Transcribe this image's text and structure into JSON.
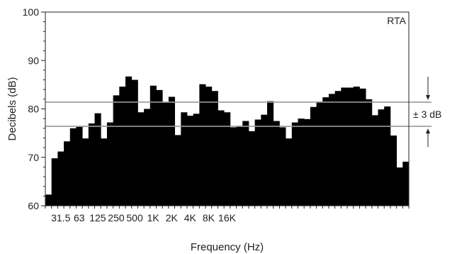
{
  "chart_data": {
    "type": "bar",
    "inset_label": "RTA",
    "xlabel": "Frequency (Hz)",
    "ylabel": "Decibels (dB)",
    "ylim": [
      60,
      100
    ],
    "yticks": [
      60,
      70,
      80,
      90,
      100
    ],
    "xtick_labels": [
      "31.5",
      "63",
      "125",
      "250",
      "500",
      "1K",
      "2K",
      "4K",
      "8K",
      "16K"
    ],
    "xtick_bands": [
      3,
      6,
      9,
      12,
      15,
      18,
      21,
      24,
      27,
      30
    ],
    "values": [
      62.3,
      69.8,
      71.2,
      73.3,
      76.0,
      76.3,
      73.9,
      77.0,
      79.1,
      73.9,
      77.2,
      82.8,
      84.6,
      86.7,
      86.0,
      79.3,
      80.0,
      84.8,
      83.9,
      81.3,
      82.5,
      74.6,
      79.3,
      78.6,
      79.0,
      85.1,
      84.6,
      83.7,
      79.7,
      79.3,
      76.2,
      76.5,
      77.5,
      75.4,
      77.8,
      78.8,
      81.6,
      77.5,
      76.2,
      73.9,
      77.2,
      78.0,
      77.9,
      80.4,
      81.5,
      82.4,
      83.1,
      83.7,
      84.4,
      84.4,
      84.6,
      84.2,
      82.0,
      78.7,
      79.9,
      80.5,
      74.5,
      67.9,
      69.1
    ],
    "reference_lines": [
      81.4,
      76.4
    ],
    "tolerance_label": "± 3 dB",
    "grid": false,
    "colors": {
      "bars": "#000000",
      "reference_line": "#999999",
      "axis": "#222222"
    }
  }
}
